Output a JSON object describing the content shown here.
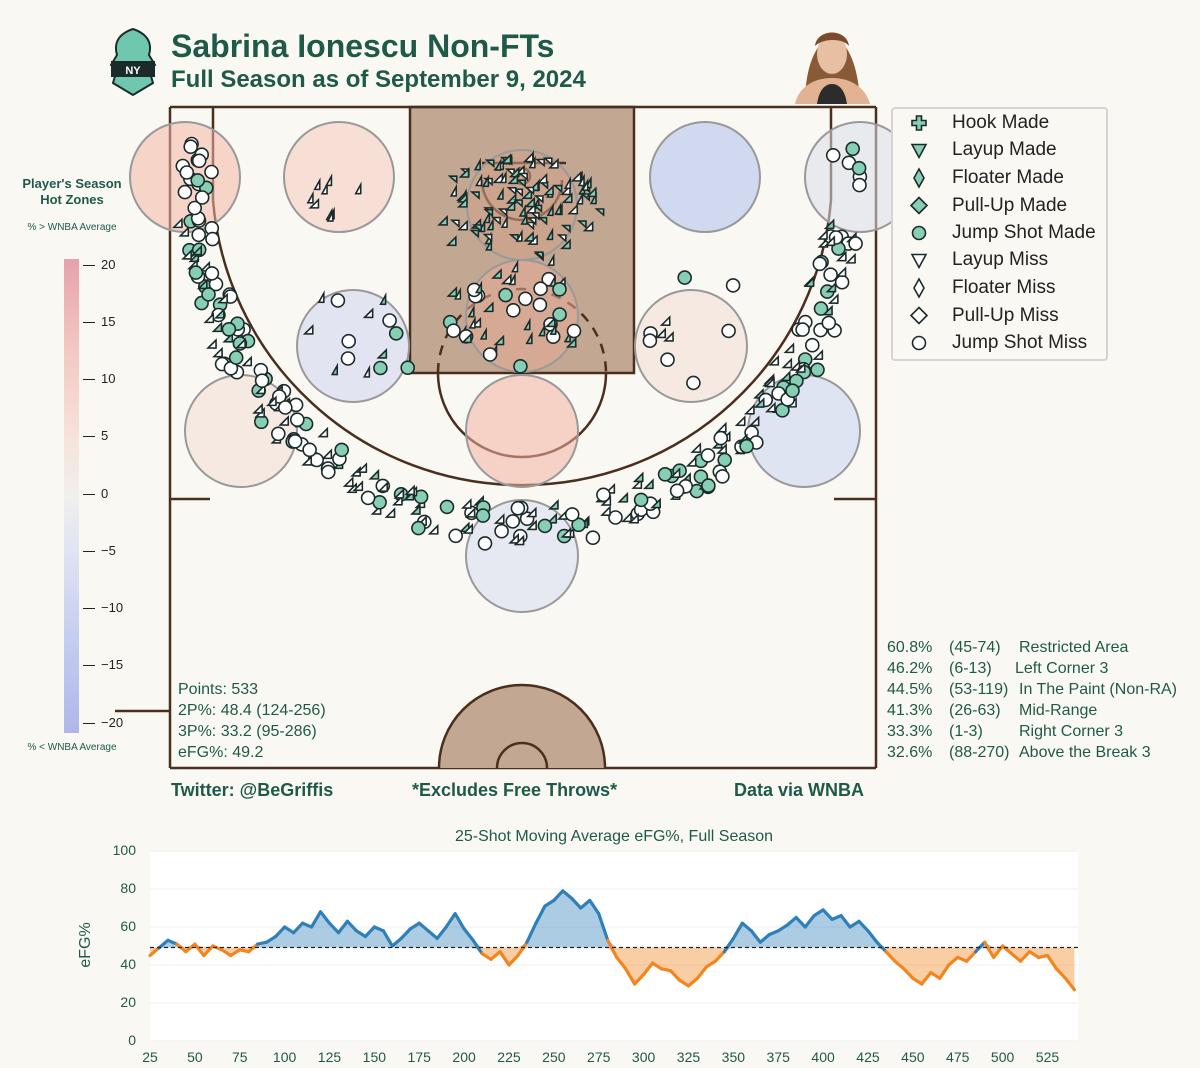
{
  "header": {
    "title": "Sabrina Ionescu Non-FTs",
    "subtitle": "Full Season as of September 9, 2024"
  },
  "credits": {
    "twitter": "Twitter: @BeGriffis",
    "note": "*Excludes Free Throws*",
    "source": "Data via WNBA"
  },
  "stats": {
    "points": "Points: 533",
    "two_pct": "2P%: 48.4 (124-256)",
    "three_pct": "3P%: 33.2 (95-286)",
    "efg": "eFG%: 49.2"
  },
  "zones": [
    {
      "pct": "60.8%",
      "rec": "(45-74)",
      "name": "Restricted Area"
    },
    {
      "pct": "46.2%",
      "rec": "(6-13)",
      "name": "Left Corner 3"
    },
    {
      "pct": "44.5%",
      "rec": "(53-119)",
      "name": "In The Paint (Non-RA)"
    },
    {
      "pct": "41.3%",
      "rec": "(26-63)",
      "name": "Mid-Range"
    },
    {
      "pct": "33.3%",
      "rec": "(1-3)",
      "name": "Right Corner 3"
    },
    {
      "pct": "32.6%",
      "rec": "(88-270)",
      "name": "Above the Break 3"
    }
  ],
  "legend": [
    {
      "label": "Hook Made",
      "shape": "plus",
      "made": true
    },
    {
      "label": "Layup Made",
      "shape": "triangle",
      "made": true
    },
    {
      "label": "Floater Made",
      "shape": "thin-diamond",
      "made": true
    },
    {
      "label": "Pull-Up Made",
      "shape": "diamond",
      "made": true
    },
    {
      "label": "Jump Shot Made",
      "shape": "circle",
      "made": true
    },
    {
      "label": "Layup Miss",
      "shape": "triangle",
      "made": false
    },
    {
      "label": "Floater Miss",
      "shape": "thin-diamond",
      "made": false
    },
    {
      "label": "Pull-Up Miss",
      "shape": "diamond",
      "made": false
    },
    {
      "label": "Jump Shot Miss",
      "shape": "circle",
      "made": false
    }
  ],
  "colorbar": {
    "title": "Player's Season Hot Zones",
    "top_note": "% > WNBA Average",
    "bottom_note": "% < WNBA Average",
    "ticks": [
      "20",
      "15",
      "10",
      "5",
      "0",
      "−5",
      "−10",
      "−15",
      "−20"
    ]
  },
  "colors": {
    "made": "#86cfb4",
    "miss": "#ffffff",
    "court_line": "#4a2e1e",
    "paint": "#c2a892",
    "above_avg": "#2f7fb8",
    "below_avg": "#f2851e",
    "hot": "#e9948f",
    "cold": "#a8b8ee"
  },
  "chart_data": {
    "type": "area",
    "title": "25-Shot Moving Average eFG%, Full Season",
    "ylabel": "eFG%",
    "xlim": [
      25,
      542
    ],
    "ylim": [
      0,
      100
    ],
    "xticks": [
      "25",
      "50",
      "75",
      "100",
      "125",
      "150",
      "175",
      "200",
      "225",
      "250",
      "275",
      "300",
      "325",
      "350",
      "375",
      "400",
      "425",
      "450",
      "475",
      "500",
      "525"
    ],
    "yticks": [
      "0",
      "20",
      "40",
      "60",
      "80",
      "100"
    ],
    "baseline": 49.2,
    "points": [
      [
        25,
        45
      ],
      [
        30,
        49
      ],
      [
        35,
        53
      ],
      [
        40,
        51
      ],
      [
        45,
        47
      ],
      [
        50,
        51
      ],
      [
        55,
        45
      ],
      [
        60,
        50
      ],
      [
        65,
        48
      ],
      [
        70,
        45
      ],
      [
        75,
        48
      ],
      [
        80,
        47
      ],
      [
        85,
        51
      ],
      [
        90,
        52
      ],
      [
        95,
        55
      ],
      [
        100,
        60
      ],
      [
        105,
        57
      ],
      [
        110,
        62
      ],
      [
        115,
        60
      ],
      [
        120,
        68
      ],
      [
        125,
        62
      ],
      [
        130,
        57
      ],
      [
        135,
        63
      ],
      [
        140,
        58
      ],
      [
        145,
        55
      ],
      [
        150,
        60
      ],
      [
        155,
        58
      ],
      [
        160,
        50
      ],
      [
        165,
        54
      ],
      [
        170,
        59
      ],
      [
        175,
        62
      ],
      [
        180,
        58
      ],
      [
        185,
        54
      ],
      [
        190,
        60
      ],
      [
        195,
        67
      ],
      [
        200,
        59
      ],
      [
        205,
        53
      ],
      [
        210,
        46
      ],
      [
        215,
        43
      ],
      [
        220,
        47
      ],
      [
        225,
        40
      ],
      [
        230,
        45
      ],
      [
        235,
        52
      ],
      [
        240,
        62
      ],
      [
        245,
        71
      ],
      [
        250,
        74
      ],
      [
        255,
        79
      ],
      [
        260,
        75
      ],
      [
        265,
        70
      ],
      [
        270,
        74
      ],
      [
        275,
        67
      ],
      [
        280,
        53
      ],
      [
        285,
        44
      ],
      [
        290,
        38
      ],
      [
        295,
        30
      ],
      [
        300,
        35
      ],
      [
        305,
        41
      ],
      [
        310,
        38
      ],
      [
        315,
        37
      ],
      [
        320,
        32
      ],
      [
        325,
        29
      ],
      [
        330,
        33
      ],
      [
        335,
        39
      ],
      [
        340,
        42
      ],
      [
        345,
        47
      ],
      [
        350,
        54
      ],
      [
        355,
        62
      ],
      [
        360,
        58
      ],
      [
        365,
        52
      ],
      [
        370,
        56
      ],
      [
        375,
        58
      ],
      [
        380,
        61
      ],
      [
        385,
        65
      ],
      [
        390,
        60
      ],
      [
        395,
        66
      ],
      [
        400,
        69
      ],
      [
        405,
        64
      ],
      [
        410,
        66
      ],
      [
        415,
        60
      ],
      [
        420,
        63
      ],
      [
        425,
        58
      ],
      [
        430,
        52
      ],
      [
        435,
        47
      ],
      [
        440,
        42
      ],
      [
        445,
        38
      ],
      [
        450,
        33
      ],
      [
        455,
        30
      ],
      [
        460,
        36
      ],
      [
        465,
        33
      ],
      [
        470,
        40
      ],
      [
        475,
        44
      ],
      [
        480,
        42
      ],
      [
        485,
        47
      ],
      [
        490,
        52
      ],
      [
        495,
        44
      ],
      [
        500,
        50
      ],
      [
        505,
        46
      ],
      [
        510,
        42
      ],
      [
        515,
        47
      ],
      [
        520,
        44
      ],
      [
        525,
        45
      ],
      [
        530,
        38
      ],
      [
        535,
        33
      ],
      [
        540,
        27
      ]
    ]
  }
}
